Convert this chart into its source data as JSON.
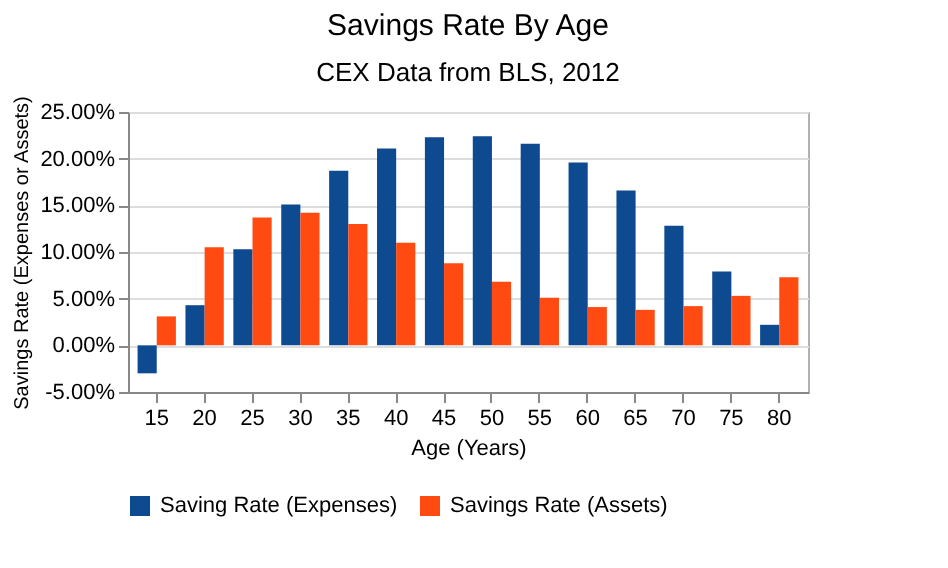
{
  "chart_data": {
    "type": "bar",
    "title": "Savings Rate By Age",
    "subtitle": "CEX Data from BLS, 2012",
    "xlabel": "Age (Years)",
    "ylabel": "Savings Rate (Expenses or Assets)",
    "categories": [
      "15",
      "20",
      "25",
      "30",
      "35",
      "40",
      "45",
      "50",
      "55",
      "60",
      "65",
      "70",
      "75",
      "80"
    ],
    "series": [
      {
        "name": "Saving Rate (Expenses)",
        "color": "#0d4a8f",
        "values": [
          -3.0,
          4.3,
          10.3,
          15.1,
          18.7,
          21.1,
          22.3,
          22.4,
          21.6,
          19.6,
          16.6,
          12.8,
          7.9,
          2.2
        ]
      },
      {
        "name": "Savings Rate (Assets)",
        "color": "#ff4a12",
        "values": [
          3.1,
          10.5,
          13.7,
          14.2,
          13.0,
          11.0,
          8.8,
          6.8,
          5.1,
          4.1,
          3.8,
          4.2,
          5.3,
          7.3
        ]
      }
    ],
    "ylim": [
      -5,
      25
    ],
    "yticks": [
      {
        "value": -5,
        "label": "-5.00%"
      },
      {
        "value": 0,
        "label": "0.00%"
      },
      {
        "value": 5,
        "label": "5.00%"
      },
      {
        "value": 10,
        "label": "10.00%"
      },
      {
        "value": 15,
        "label": "15.00%"
      },
      {
        "value": 20,
        "label": "20.00%"
      },
      {
        "value": 25,
        "label": "25.00%"
      }
    ],
    "grid": "y",
    "legend": "bottom"
  }
}
